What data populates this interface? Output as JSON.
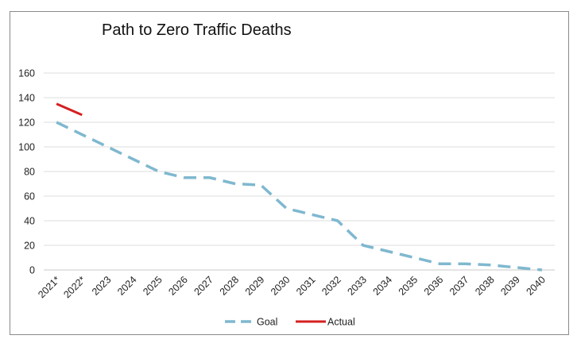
{
  "chart_data": {
    "type": "line",
    "title": "Path to Zero Traffic Deaths",
    "xlabel": "",
    "ylabel": "",
    "ylim": [
      0,
      160
    ],
    "yticks": [
      "0",
      "20",
      "40",
      "60",
      "80",
      "100",
      "120",
      "140",
      "160"
    ],
    "grid": true,
    "legend_position": "bottom",
    "categories": [
      "2021*",
      "2022*",
      "2023",
      "2024",
      "2025",
      "2026",
      "2027",
      "2028",
      "2029",
      "2030",
      "2031",
      "2032",
      "2033",
      "2034",
      "2035",
      "2036",
      "2037",
      "2038",
      "2039",
      "2040"
    ],
    "series": [
      {
        "name": "Goal",
        "style": "dashed",
        "color": "#7fb8cf",
        "values": [
          120,
          110,
          100,
          90,
          80,
          75,
          75,
          70,
          69,
          50,
          45,
          40,
          20,
          15,
          10,
          5,
          5,
          4,
          2,
          0
        ]
      },
      {
        "name": "Actual",
        "style": "solid",
        "color": "#d42020",
        "values": [
          135,
          126,
          null,
          null,
          null,
          null,
          null,
          null,
          null,
          null,
          null,
          null,
          null,
          null,
          null,
          null,
          null,
          null,
          null,
          null
        ]
      }
    ]
  }
}
